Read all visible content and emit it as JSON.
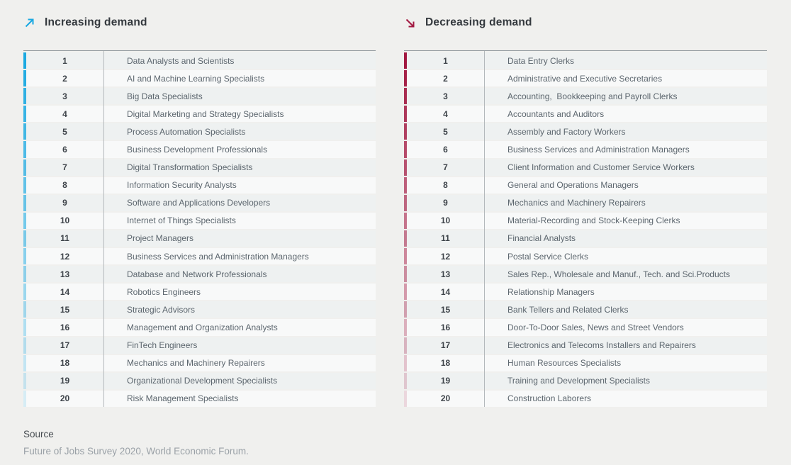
{
  "chart_data": [
    {
      "type": "table",
      "trend": "increasing",
      "title": "Increasing demand",
      "icon": "arrow-up-right-icon",
      "accent_color": "#1BA9E1",
      "ranks": [
        1,
        2,
        3,
        4,
        5,
        6,
        7,
        8,
        9,
        10,
        11,
        12,
        13,
        14,
        15,
        16,
        17,
        18,
        19,
        20
      ],
      "labels": [
        "Data Analysts and Scientists",
        "AI and Machine Learning Specialists",
        "Big Data Specialists",
        "Digital Marketing and Strategy Specialists",
        "Process Automation Specialists",
        "Business Development Professionals",
        "Digital Transformation Specialists",
        "Information Security Analysts",
        "Software and Applications Developers",
        "Internet of Things Specialists",
        "Project Managers",
        "Business Services and Administration Managers",
        "Database and Network Professionals",
        "Robotics Engineers",
        "Strategic Advisors",
        "Management and Organization Analysts",
        "FinTech Engineers",
        "Mechanics and Machinery Repairers",
        "Organizational Development Specialists",
        "Risk Management Specialists"
      ]
    },
    {
      "type": "table",
      "trend": "decreasing",
      "title": "Decreasing demand",
      "icon": "arrow-down-right-icon",
      "accent_color": "#A21941",
      "ranks": [
        1,
        2,
        3,
        4,
        5,
        6,
        7,
        8,
        9,
        10,
        11,
        12,
        13,
        14,
        15,
        16,
        17,
        18,
        19,
        20
      ],
      "labels": [
        "Data Entry Clerks",
        "Administrative and Executive Secretaries",
        "Accounting,  Bookkeeping and Payroll Clerks",
        "Accountants and Auditors",
        "Assembly and Factory Workers",
        "Business Services and Administration Managers",
        "Client Information and Customer Service Workers",
        "General and Operations Managers",
        "Mechanics and Machinery Repairers",
        "Material-Recording and Stock-Keeping Clerks",
        "Financial Analysts",
        "Postal Service Clerks",
        "Sales Rep., Wholesale and Manuf., Tech. and Sci.Products",
        "Relationship Managers",
        "Bank Tellers and Related Clerks",
        "Door-To-Door Sales, News and Street Vendors",
        "Electronics and Telecoms Installers and Repairers",
        "Human Resources Specialists",
        "Training and Development Specialists",
        "Construction Laborers"
      ]
    }
  ],
  "footer": {
    "source_label": "Source",
    "source_text": "Future of Jobs Survey 2020, World Economic Forum."
  }
}
